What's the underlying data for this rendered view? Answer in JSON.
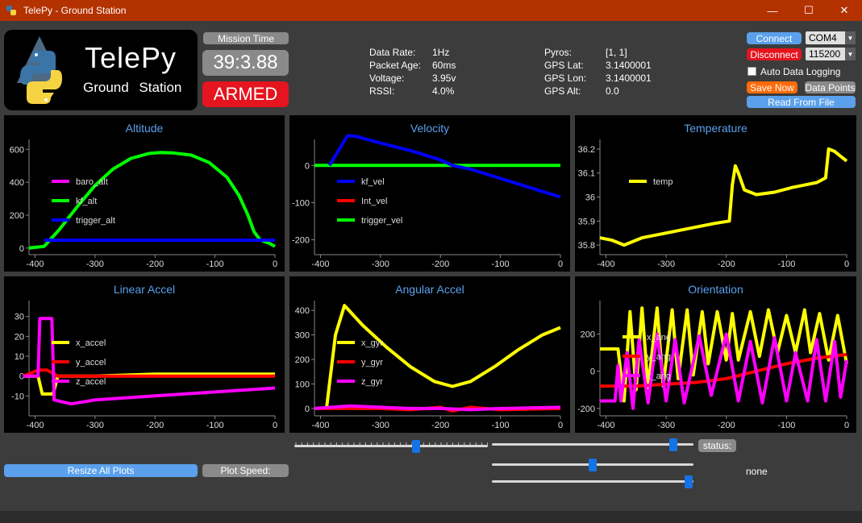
{
  "window": {
    "title": "TelePy - Ground Station",
    "minimize": "—",
    "maximize": "☐",
    "close": "✕"
  },
  "logo": {
    "title": "TelePy",
    "subtitle": "Ground Station"
  },
  "mission": {
    "label": "Mission Time",
    "time": "39:3.88",
    "state": "ARMED"
  },
  "telemetry": {
    "labels": [
      "Data Rate:",
      "Packet Age:",
      "Voltage:",
      "RSSI:"
    ],
    "values": [
      "1Hz",
      "60ms",
      "3.95v",
      "4.0%"
    ],
    "labels2": [
      "Pyros:",
      "GPS Lat:",
      "GPS Lon:",
      "GPS Alt:"
    ],
    "values2": [
      "[1, 1]",
      "3.1400001",
      "3.1400001",
      "0.0"
    ]
  },
  "controls": {
    "connect": "Connect",
    "disconnect": "Disconnect",
    "port": "COM4",
    "baud": "115200",
    "auto_log": "Auto Data Logging",
    "save_now": "Save Now",
    "data_points": "Data Points",
    "read_file": "Read From File"
  },
  "bottom": {
    "resize": "Resize All Plots",
    "plot_speed": "Plot Speed:",
    "status_label": "status:",
    "status_value": "none"
  },
  "colors": {
    "accent": "#5aa0ec",
    "armed": "#e5141e",
    "save": "#ff6b0a",
    "titlebar": "#b43200"
  },
  "plots": [
    {
      "title": "Altitude",
      "xticks": [
        "-400",
        "-300",
        "-200",
        "-100",
        "0"
      ],
      "yticks": [
        "600",
        "400",
        "200",
        "0"
      ],
      "legend": [
        {
          "name": "baro_alt",
          "color": "#ff00ff"
        },
        {
          "name": "kf_alt",
          "color": "#00ff00"
        },
        {
          "name": "trigger_alt",
          "color": "#0000ff"
        }
      ]
    },
    {
      "title": "Velocity",
      "xticks": [
        "-400",
        "-300",
        "-200",
        "-100",
        "0"
      ],
      "yticks": [
        "0",
        "-100",
        "-200"
      ],
      "legend": [
        {
          "name": "kf_vel",
          "color": "#0000ff"
        },
        {
          "name": "Int_vel",
          "color": "#ff0000"
        },
        {
          "name": "trigger_vel",
          "color": "#00ff00"
        }
      ]
    },
    {
      "title": "Temperature",
      "xticks": [
        "-400",
        "-300",
        "-200",
        "-100",
        "0"
      ],
      "yticks": [
        "36.2",
        "36.1",
        "36",
        "35.9",
        "35.8"
      ],
      "legend": [
        {
          "name": "temp",
          "color": "#ffff00"
        }
      ]
    },
    {
      "title": "Linear Accel",
      "xticks": [
        "-400",
        "-300",
        "-200",
        "-100",
        "0"
      ],
      "yticks": [
        "30",
        "20",
        "10",
        "0",
        "-10"
      ],
      "legend": [
        {
          "name": "x_accel",
          "color": "#ffff00"
        },
        {
          "name": "y_accel",
          "color": "#ff0000"
        },
        {
          "name": "z_accel",
          "color": "#ff00ff"
        }
      ]
    },
    {
      "title": "Angular Accel",
      "xticks": [
        "-400",
        "-300",
        "-200",
        "-100",
        "0"
      ],
      "yticks": [
        "400",
        "300",
        "200",
        "100",
        "0"
      ],
      "legend": [
        {
          "name": "x_gyr",
          "color": "#ffff00"
        },
        {
          "name": "y_gyr",
          "color": "#ff0000"
        },
        {
          "name": "z_gyr",
          "color": "#ff00ff"
        }
      ]
    },
    {
      "title": "Orientation",
      "xticks": [
        "-400",
        "-300",
        "-200",
        "-100",
        "0"
      ],
      "yticks": [
        "200",
        "0",
        "-200"
      ],
      "legend": [
        {
          "name": "x_ang",
          "color": "#ffff00"
        },
        {
          "name": "y_ang",
          "color": "#ff0000"
        },
        {
          "name": "z_ang",
          "color": "#ff00ff"
        }
      ]
    }
  ],
  "chart_data": [
    {
      "type": "line",
      "title": "Altitude",
      "xlim": [
        -410,
        0
      ],
      "ylim": [
        -40,
        660
      ],
      "series": [
        {
          "name": "kf_alt",
          "color": "#00ff00",
          "points": [
            [
              -410,
              0
            ],
            [
              -385,
              10
            ],
            [
              -360,
              110
            ],
            [
              -330,
              250
            ],
            [
              -300,
              380
            ],
            [
              -270,
              480
            ],
            [
              -240,
              545
            ],
            [
              -210,
              575
            ],
            [
              -190,
              580
            ],
            [
              -170,
              578
            ],
            [
              -140,
              565
            ],
            [
              -110,
              520
            ],
            [
              -80,
              430
            ],
            [
              -60,
              320
            ],
            [
              -45,
              200
            ],
            [
              -35,
              100
            ],
            [
              -25,
              50
            ],
            [
              -10,
              30
            ],
            [
              0,
              10
            ]
          ]
        },
        {
          "name": "trigger_alt",
          "color": "#0000ff",
          "points": [
            [
              -385,
              48
            ],
            [
              0,
              48
            ]
          ]
        }
      ]
    },
    {
      "type": "line",
      "title": "Velocity",
      "xlim": [
        -410,
        0
      ],
      "ylim": [
        -240,
        70
      ],
      "series": [
        {
          "name": "trigger_vel",
          "color": "#00ff00",
          "points": [
            [
              -410,
              0
            ],
            [
              0,
              0
            ]
          ]
        },
        {
          "name": "kf_vel",
          "color": "#0000ff",
          "points": [
            [
              -385,
              0
            ],
            [
              -355,
              80
            ],
            [
              -340,
              78
            ],
            [
              -300,
              60
            ],
            [
              -250,
              40
            ],
            [
              -200,
              15
            ],
            [
              -180,
              0
            ],
            [
              -150,
              -10
            ],
            [
              -100,
              -35
            ],
            [
              -50,
              -60
            ],
            [
              0,
              -85
            ]
          ]
        }
      ]
    },
    {
      "type": "line",
      "title": "Temperature",
      "xlim": [
        -410,
        0
      ],
      "ylim": [
        35.76,
        36.24
      ],
      "series": [
        {
          "name": "temp",
          "color": "#ffff00",
          "points": [
            [
              -410,
              35.83
            ],
            [
              -390,
              35.82
            ],
            [
              -370,
              35.8
            ],
            [
              -340,
              35.83
            ],
            [
              -300,
              35.85
            ],
            [
              -260,
              35.87
            ],
            [
              -220,
              35.89
            ],
            [
              -195,
              35.9
            ],
            [
              -190,
              36.05
            ],
            [
              -185,
              36.13
            ],
            [
              -180,
              36.1
            ],
            [
              -170,
              36.03
            ],
            [
              -150,
              36.01
            ],
            [
              -120,
              36.02
            ],
            [
              -90,
              36.04
            ],
            [
              -50,
              36.06
            ],
            [
              -35,
              36.08
            ],
            [
              -30,
              36.2
            ],
            [
              -20,
              36.19
            ],
            [
              -10,
              36.17
            ],
            [
              0,
              36.15
            ]
          ]
        }
      ]
    },
    {
      "type": "line",
      "title": "Linear Accel",
      "xlim": [
        -410,
        0
      ],
      "ylim": [
        -20,
        38
      ],
      "series": [
        {
          "name": "x_accel",
          "color": "#ffff00",
          "points": [
            [
              -420,
              0
            ],
            [
              -395,
              0
            ],
            [
              -388,
              -9
            ],
            [
              -370,
              -9
            ],
            [
              -362,
              0
            ],
            [
              -300,
              0
            ],
            [
              -200,
              1
            ],
            [
              -100,
              1
            ],
            [
              0,
              1
            ]
          ]
        },
        {
          "name": "y_accel",
          "color": "#ff0000",
          "points": [
            [
              -420,
              0
            ],
            [
              -395,
              3
            ],
            [
              -380,
              3
            ],
            [
              -362,
              0
            ],
            [
              -300,
              0
            ],
            [
              -200,
              0
            ],
            [
              -100,
              0
            ],
            [
              0,
              0
            ]
          ]
        },
        {
          "name": "z_accel",
          "color": "#ff00ff",
          "points": [
            [
              -420,
              0
            ],
            [
              -395,
              0
            ],
            [
              -392,
              29
            ],
            [
              -372,
              29
            ],
            [
              -368,
              -12
            ],
            [
              -340,
              -14
            ],
            [
              -300,
              -12
            ],
            [
              -200,
              -10
            ],
            [
              -100,
              -8
            ],
            [
              0,
              -6
            ]
          ]
        }
      ]
    },
    {
      "type": "line",
      "title": "Angular Accel",
      "xlim": [
        -410,
        0
      ],
      "ylim": [
        -30,
        440
      ],
      "series": [
        {
          "name": "x_gyr",
          "color": "#ffff00",
          "points": [
            [
              -390,
              0
            ],
            [
              -375,
              300
            ],
            [
              -360,
              420
            ],
            [
              -330,
              340
            ],
            [
              -290,
              250
            ],
            [
              -250,
              170
            ],
            [
              -210,
              110
            ],
            [
              -180,
              90
            ],
            [
              -150,
              110
            ],
            [
              -110,
              170
            ],
            [
              -70,
              240
            ],
            [
              -30,
              300
            ],
            [
              0,
              330
            ]
          ]
        },
        {
          "name": "y_gyr",
          "color": "#ff0000",
          "points": [
            [
              -410,
              0
            ],
            [
              -300,
              0
            ],
            [
              -250,
              -5
            ],
            [
              -200,
              5
            ],
            [
              -180,
              -10
            ],
            [
              -150,
              5
            ],
            [
              -100,
              -5
            ],
            [
              0,
              0
            ]
          ]
        },
        {
          "name": "z_gyr",
          "color": "#ff00ff",
          "points": [
            [
              -410,
              0
            ],
            [
              -350,
              10
            ],
            [
              -300,
              5
            ],
            [
              -250,
              0
            ],
            [
              -200,
              0
            ],
            [
              -150,
              -5
            ],
            [
              -100,
              0
            ],
            [
              0,
              5
            ]
          ]
        }
      ]
    },
    {
      "type": "line",
      "title": "Orientation",
      "xlim": [
        -410,
        0
      ],
      "ylim": [
        -240,
        380
      ],
      "series": [
        {
          "name": "x_ang",
          "color": "#ffff00",
          "points": [
            [
              -410,
              120
            ],
            [
              -380,
              120
            ],
            [
              -370,
              -160
            ],
            [
              -360,
              320
            ],
            [
              -350,
              -100
            ],
            [
              -340,
              340
            ],
            [
              -330,
              -90
            ],
            [
              -315,
              340
            ],
            [
              -305,
              -80
            ],
            [
              -290,
              330
            ],
            [
              -280,
              -40
            ],
            [
              -265,
              330
            ],
            [
              -255,
              -20
            ],
            [
              -240,
              320
            ],
            [
              -230,
              40
            ],
            [
              -215,
              320
            ],
            [
              -200,
              60
            ],
            [
              -190,
              310
            ],
            [
              -180,
              60
            ],
            [
              -160,
              320
            ],
            [
              -145,
              80
            ],
            [
              -130,
              330
            ],
            [
              -115,
              100
            ],
            [
              -100,
              300
            ],
            [
              -85,
              100
            ],
            [
              -70,
              330
            ],
            [
              -60,
              100
            ],
            [
              -45,
              310
            ],
            [
              -30,
              60
            ],
            [
              -15,
              300
            ],
            [
              0,
              40
            ]
          ]
        },
        {
          "name": "y_ang",
          "color": "#ff0000",
          "points": [
            [
              -410,
              -80
            ],
            [
              -350,
              -80
            ],
            [
              -300,
              -70
            ],
            [
              -250,
              -60
            ],
            [
              -200,
              -40
            ],
            [
              -150,
              0
            ],
            [
              -100,
              40
            ],
            [
              -50,
              70
            ],
            [
              0,
              90
            ]
          ]
        },
        {
          "name": "z_ang",
          "color": "#ff00ff",
          "points": [
            [
              -410,
              -160
            ],
            [
              -385,
              -160
            ],
            [
              -380,
              30
            ],
            [
              -375,
              -160
            ],
            [
              -365,
              100
            ],
            [
              -355,
              -200
            ],
            [
              -345,
              170
            ],
            [
              -330,
              -170
            ],
            [
              -315,
              200
            ],
            [
              -300,
              -160
            ],
            [
              -285,
              170
            ],
            [
              -270,
              -170
            ],
            [
              -245,
              190
            ],
            [
              -225,
              -130
            ],
            [
              -200,
              200
            ],
            [
              -180,
              -160
            ],
            [
              -160,
              160
            ],
            [
              -140,
              -170
            ],
            [
              -120,
              180
            ],
            [
              -100,
              -160
            ],
            [
              -85,
              100
            ],
            [
              -65,
              -160
            ],
            [
              -50,
              170
            ],
            [
              -35,
              -160
            ],
            [
              -20,
              160
            ],
            [
              -10,
              -140
            ],
            [
              0,
              60
            ]
          ]
        }
      ]
    }
  ]
}
